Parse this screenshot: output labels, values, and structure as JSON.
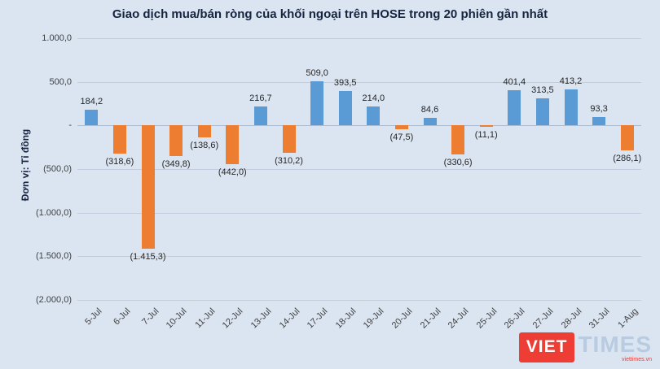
{
  "title": "Giao dịch mua/bán ròng của khối ngoại trên HOSE trong 20 phiên gần nhất",
  "y_axis_title": "Đơn vị: Tỉ đồng",
  "chart_data": {
    "type": "bar",
    "title": "Giao dịch mua/bán ròng của khối ngoại trên HOSE trong 20 phiên gần nhất",
    "ylabel": "Đơn vị: Tỉ đồng",
    "xlabel": "",
    "categories": [
      "5-Jul",
      "6-Jul",
      "7-Jul",
      "10-Jul",
      "11-Jul",
      "12-Jul",
      "13-Jul",
      "14-Jul",
      "17-Jul",
      "18-Jul",
      "19-Jul",
      "20-Jul",
      "21-Jul",
      "24-Jul",
      "25-Jul",
      "26-Jul",
      "27-Jul",
      "28-Jul",
      "31-Jul",
      "1-Aug"
    ],
    "values": [
      184.2,
      -318.6,
      -1415.3,
      -349.8,
      -138.6,
      -442.0,
      216.7,
      -310.2,
      509.0,
      393.5,
      214.0,
      -47.5,
      84.6,
      -330.6,
      -11.1,
      401.4,
      313.5,
      413.2,
      93.3,
      -286.1
    ],
    "value_labels": [
      "184,2",
      "(318,6)",
      "(1.415,3)",
      "(349,8)",
      "(138,6)",
      "(442,0)",
      "216,7",
      "(310,2)",
      "509,0",
      "393,5",
      "214,0",
      "(47,5)",
      "84,6",
      "(330,6)",
      "(11,1)",
      "401,4",
      "313,5",
      "413,2",
      "93,3",
      "(286,1)"
    ],
    "ylim": [
      -2000,
      1000
    ],
    "ytick_values": [
      1000,
      500,
      0,
      -500,
      -1000,
      -1500,
      -2000
    ],
    "ytick_labels": [
      "1.000,0",
      "500,0",
      "-",
      "(500,0)",
      "(1.000,0)",
      "(1.500,0)",
      "(2.000,0)"
    ],
    "grid": true,
    "legend": "none",
    "colors": {
      "positive": "#5b9bd5",
      "negative": "#ed7d31",
      "background": "#dbe5f1"
    }
  },
  "logo": {
    "viet": "VIET",
    "times": "TIMES",
    "tagline": "viettimes.vn"
  }
}
